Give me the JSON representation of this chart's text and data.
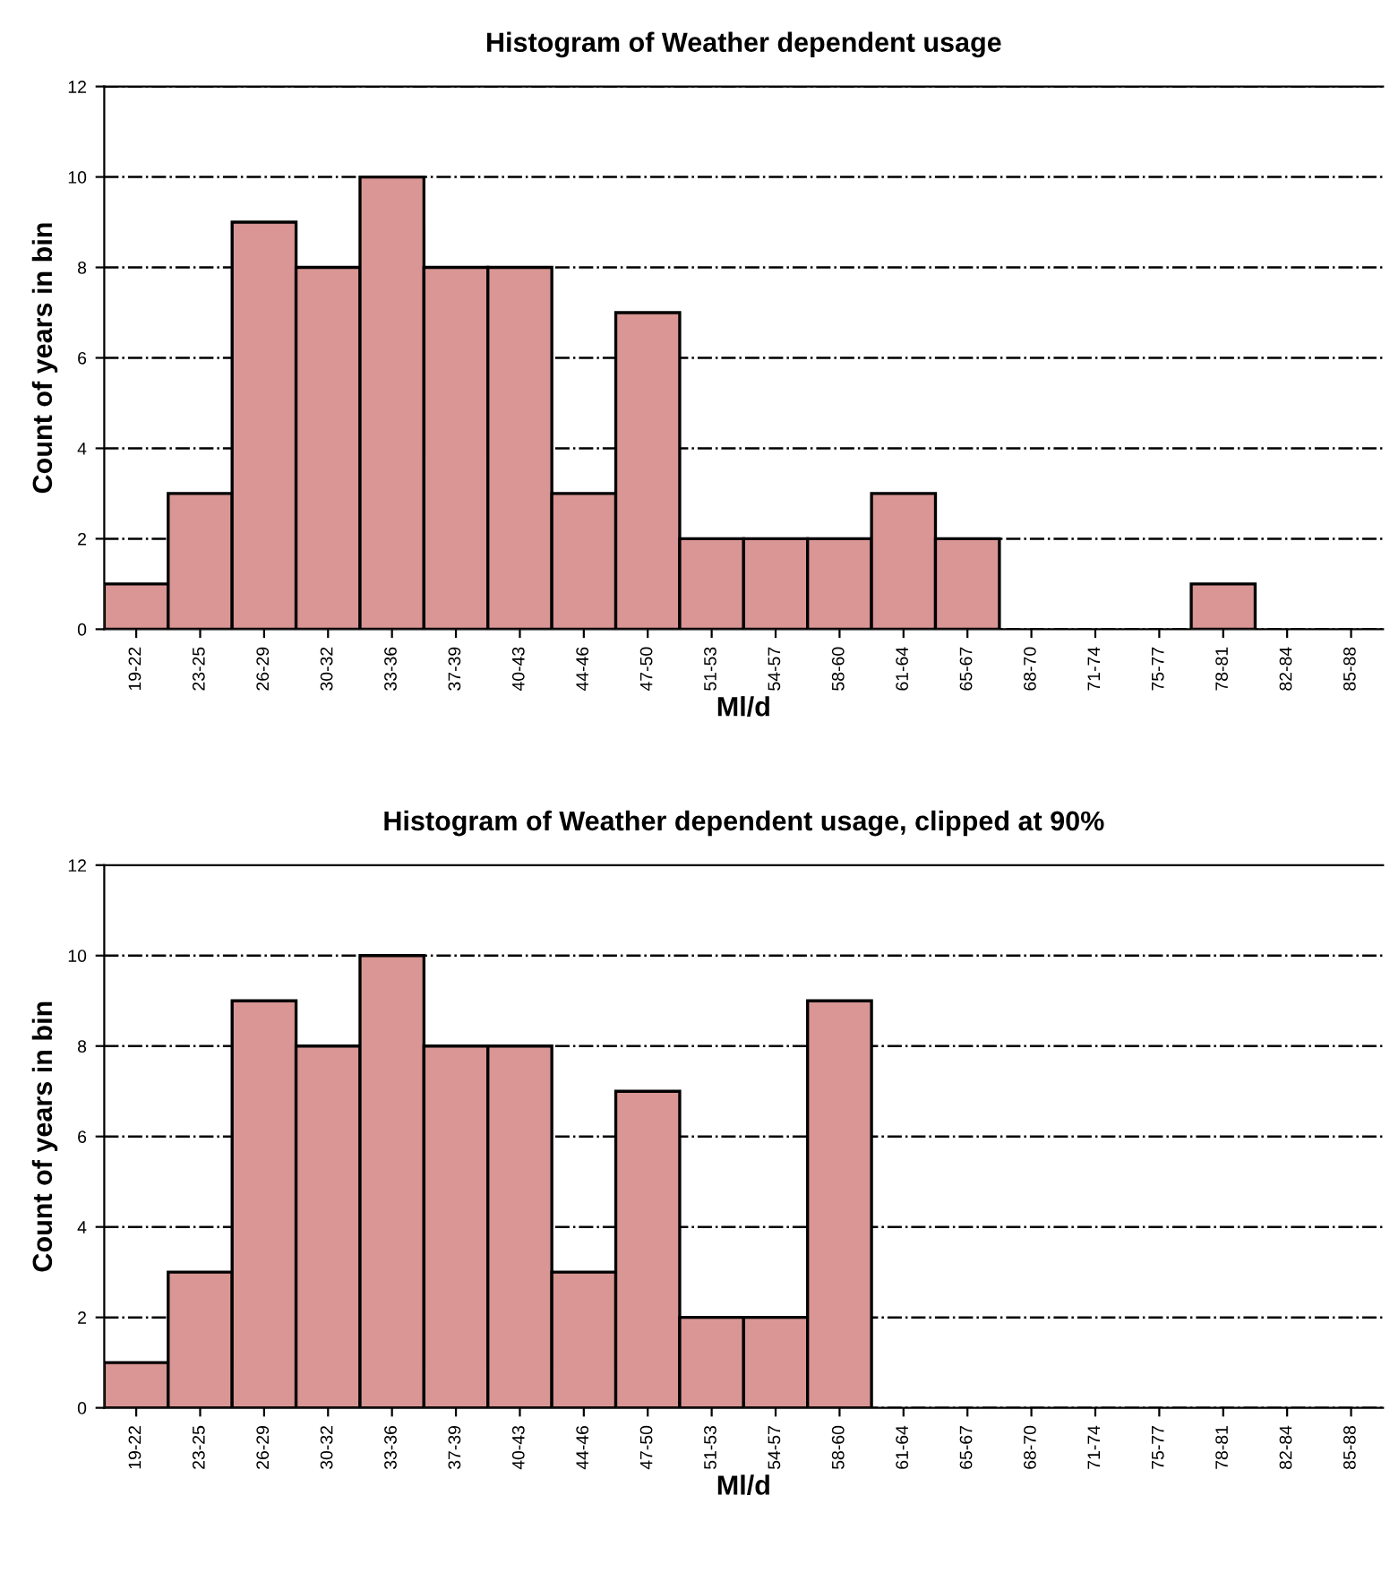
{
  "chart_data": [
    {
      "type": "bar",
      "title": "Histogram of Weather dependent usage",
      "xlabel": "Ml/d",
      "ylabel": "Count of years in bin",
      "categories": [
        "19-22",
        "23-25",
        "26-29",
        "30-32",
        "33-36",
        "37-39",
        "40-43",
        "44-46",
        "47-50",
        "51-53",
        "54-57",
        "58-60",
        "61-64",
        "65-67",
        "68-70",
        "71-74",
        "75-77",
        "78-81",
        "82-84",
        "85-88"
      ],
      "values": [
        1,
        3,
        9,
        8,
        10,
        8,
        8,
        3,
        7,
        2,
        2,
        2,
        3,
        2,
        0,
        0,
        0,
        1,
        0,
        0
      ],
      "color": "#d99694",
      "ylim": [
        0,
        12
      ],
      "yticks": [
        0,
        2,
        4,
        6,
        8,
        10,
        12
      ],
      "grid": "y"
    },
    {
      "type": "bar",
      "title": "Histogram of Weather dependent usage, clipped at 90%",
      "xlabel": "Ml/d",
      "ylabel": "Count of years in bin",
      "categories": [
        "19-22",
        "23-25",
        "26-29",
        "30-32",
        "33-36",
        "37-39",
        "40-43",
        "44-46",
        "47-50",
        "51-53",
        "54-57",
        "58-60",
        "61-64",
        "65-67",
        "68-70",
        "71-74",
        "75-77",
        "78-81",
        "82-84",
        "85-88"
      ],
      "values": [
        1,
        3,
        9,
        8,
        10,
        8,
        8,
        3,
        7,
        2,
        2,
        9,
        0,
        0,
        0,
        0,
        0,
        0,
        0,
        0
      ],
      "color": "#d99694",
      "ylim": [
        0,
        12
      ],
      "yticks": [
        0,
        2,
        4,
        6,
        8,
        10,
        12
      ],
      "grid": "y"
    }
  ]
}
